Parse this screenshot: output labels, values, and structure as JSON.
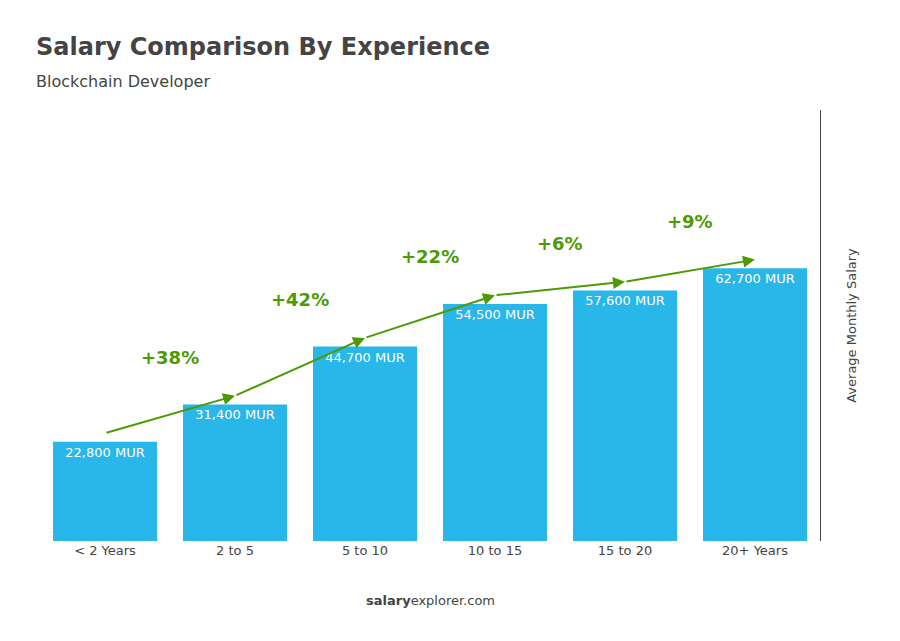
{
  "chart_data": {
    "type": "bar",
    "title": "Salary Comparison By Experience",
    "subtitle": "Blockchain Developer",
    "categories": [
      "< 2 Years",
      "2 to 5",
      "5 to 10",
      "10 to 15",
      "15 to 20",
      "20+ Years"
    ],
    "values": [
      22800,
      31400,
      44700,
      54500,
      57600,
      62700
    ],
    "value_labels": [
      "22,800 MUR",
      "31,400 MUR",
      "44,700 MUR",
      "54,500 MUR",
      "57,600 MUR",
      "62,700 MUR"
    ],
    "data_labels": true,
    "annotations": [
      "+38%",
      "+42%",
      "+22%",
      "+6%",
      "+9%"
    ],
    "ylabel": "Average Monthly Salary",
    "source": [
      "salary",
      "explorer.com"
    ],
    "color": "#29b6e8",
    "ylim": [
      0,
      99066
    ],
    "grid": false,
    "tick_labels": "x"
  }
}
